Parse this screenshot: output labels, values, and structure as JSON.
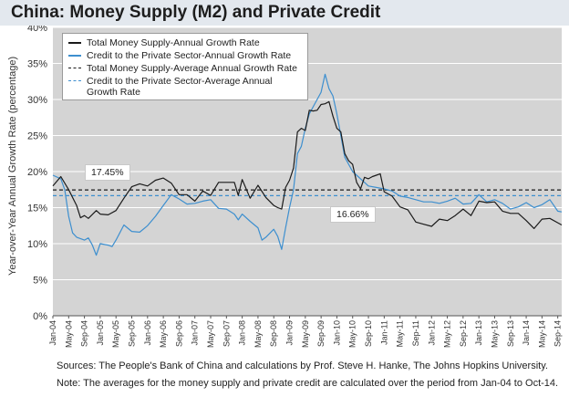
{
  "title": "China: Money Supply (M2) and Private Credit",
  "notes": {
    "source": "Sources: The People's Bank of China and calculations by Prof. Steve H. Hanke,  The Johns Hopkins University.",
    "note": "Note: The averages for the money supply and private credit are calculated over the period from Jan-04 to Oct-14."
  },
  "colors": {
    "m2": "#1a1a1a",
    "credit": "#3d8fcf",
    "plot_bg": "#d4d4d4",
    "title_bg": "#e3e8ee",
    "grid": "#ffffff"
  },
  "chart_data": {
    "type": "line",
    "title": "China: Money Supply (M2) and Private Credit",
    "ylabel": "Year-over-Year Annual Growth Rate (percentage)",
    "xlabel": "",
    "ylim": [
      0,
      40
    ],
    "yticks": [
      "0%",
      "5%",
      "10%",
      "15%",
      "20%",
      "25%",
      "30%",
      "35%",
      "40%"
    ],
    "grid": "horizontal",
    "legend_position": "top-left",
    "x_range": [
      "Jan-04",
      "Oct-14"
    ],
    "x_tick_labels": [
      "Jan-04",
      "May-04",
      "Sep-04",
      "Jan-05",
      "May-05",
      "Sep-05",
      "Jan-06",
      "May-06",
      "Sep-06",
      "Jan-07",
      "May-07",
      "Sep-07",
      "Jan-08",
      "May-08",
      "Sep-08",
      "Jan-09",
      "May-09",
      "Sep-09",
      "Jan-10",
      "May-10",
      "Sep-10",
      "Jan-11",
      "May-11",
      "Sep-11",
      "Jan-12",
      "May-12",
      "Sep-12",
      "Jan-13",
      "May-13",
      "Sep-13",
      "Jan-14",
      "May-14",
      "Sep-14"
    ],
    "series": [
      {
        "name": "Total Money Supply-Annual Growth Rate",
        "style": "solid",
        "points": [
          [
            "Jan-04",
            18.0
          ],
          [
            "Mar-04",
            19.3
          ],
          [
            "May-04",
            17.5
          ],
          [
            "Jul-04",
            15.3
          ],
          [
            "Aug-04",
            13.6
          ],
          [
            "Sep-04",
            13.9
          ],
          [
            "Oct-04",
            13.5
          ],
          [
            "Dec-04",
            14.6
          ],
          [
            "Jan-05",
            14.1
          ],
          [
            "Mar-05",
            14.0
          ],
          [
            "May-05",
            14.6
          ],
          [
            "Jul-05",
            16.3
          ],
          [
            "Sep-05",
            17.9
          ],
          [
            "Nov-05",
            18.3
          ],
          [
            "Jan-06",
            18.0
          ],
          [
            "Mar-06",
            18.8
          ],
          [
            "May-06",
            19.1
          ],
          [
            "Jul-06",
            18.4
          ],
          [
            "Sep-06",
            16.8
          ],
          [
            "Nov-06",
            16.8
          ],
          [
            "Jan-07",
            15.9
          ],
          [
            "Mar-07",
            17.3
          ],
          [
            "May-07",
            16.7
          ],
          [
            "Jul-07",
            18.5
          ],
          [
            "Sep-07",
            18.5
          ],
          [
            "Nov-07",
            18.5
          ],
          [
            "Dec-07",
            16.7
          ],
          [
            "Jan-08",
            18.9
          ],
          [
            "Mar-08",
            16.3
          ],
          [
            "May-08",
            18.1
          ],
          [
            "Jul-08",
            16.4
          ],
          [
            "Sep-08",
            15.3
          ],
          [
            "Oct-08",
            15.0
          ],
          [
            "Nov-08",
            14.8
          ],
          [
            "Dec-08",
            17.8
          ],
          [
            "Jan-09",
            18.8
          ],
          [
            "Feb-09",
            20.5
          ],
          [
            "Mar-09",
            25.5
          ],
          [
            "Apr-09",
            26.0
          ],
          [
            "May-09",
            25.7
          ],
          [
            "Jun-09",
            28.5
          ],
          [
            "Jul-09",
            28.4
          ],
          [
            "Aug-09",
            28.5
          ],
          [
            "Sep-09",
            29.3
          ],
          [
            "Oct-09",
            29.4
          ],
          [
            "Nov-09",
            29.7
          ],
          [
            "Dec-09",
            27.7
          ],
          [
            "Jan-10",
            26.0
          ],
          [
            "Feb-10",
            25.5
          ],
          [
            "Mar-10",
            22.5
          ],
          [
            "Apr-10",
            21.5
          ],
          [
            "May-10",
            21.0
          ],
          [
            "Jun-10",
            18.5
          ],
          [
            "Jul-10",
            17.6
          ],
          [
            "Aug-10",
            19.2
          ],
          [
            "Sep-10",
            19.0
          ],
          [
            "Oct-10",
            19.3
          ],
          [
            "Nov-10",
            19.5
          ],
          [
            "Dec-10",
            19.7
          ],
          [
            "Jan-11",
            17.2
          ],
          [
            "Mar-11",
            16.6
          ],
          [
            "May-11",
            15.1
          ],
          [
            "Jul-11",
            14.7
          ],
          [
            "Sep-11",
            13.0
          ],
          [
            "Nov-11",
            12.7
          ],
          [
            "Jan-12",
            12.4
          ],
          [
            "Mar-12",
            13.4
          ],
          [
            "May-12",
            13.2
          ],
          [
            "Jul-12",
            13.9
          ],
          [
            "Sep-12",
            14.8
          ],
          [
            "Nov-12",
            13.9
          ],
          [
            "Jan-13",
            15.9
          ],
          [
            "Mar-13",
            15.7
          ],
          [
            "May-13",
            15.8
          ],
          [
            "Jul-13",
            14.5
          ],
          [
            "Sep-13",
            14.2
          ],
          [
            "Nov-13",
            14.2
          ],
          [
            "Jan-14",
            13.2
          ],
          [
            "Mar-14",
            12.1
          ],
          [
            "May-14",
            13.4
          ],
          [
            "Jul-14",
            13.5
          ],
          [
            "Sep-14",
            12.9
          ],
          [
            "Oct-14",
            12.6
          ]
        ]
      },
      {
        "name": "Credit to the Private Sector-Annual Growth Rate",
        "style": "solid",
        "points": [
          [
            "Jan-04",
            19.5
          ],
          [
            "Mar-04",
            19.0
          ],
          [
            "Apr-04",
            17.5
          ],
          [
            "May-04",
            13.8
          ],
          [
            "Jun-04",
            11.5
          ],
          [
            "Jul-04",
            10.9
          ],
          [
            "Sep-04",
            10.5
          ],
          [
            "Oct-04",
            10.8
          ],
          [
            "Nov-04",
            9.8
          ],
          [
            "Dec-04",
            8.4
          ],
          [
            "Jan-05",
            10.0
          ],
          [
            "Mar-05",
            9.8
          ],
          [
            "Apr-05",
            9.6
          ],
          [
            "May-05",
            10.5
          ],
          [
            "Jul-05",
            12.6
          ],
          [
            "Sep-05",
            11.7
          ],
          [
            "Nov-05",
            11.6
          ],
          [
            "Jan-06",
            12.5
          ],
          [
            "Mar-06",
            13.8
          ],
          [
            "May-06",
            15.3
          ],
          [
            "Jul-06",
            16.8
          ],
          [
            "Sep-06",
            16.2
          ],
          [
            "Nov-06",
            15.5
          ],
          [
            "Jan-07",
            15.6
          ],
          [
            "Mar-07",
            15.9
          ],
          [
            "May-07",
            16.1
          ],
          [
            "Jul-07",
            14.9
          ],
          [
            "Sep-07",
            14.8
          ],
          [
            "Nov-07",
            14.1
          ],
          [
            "Dec-07",
            13.3
          ],
          [
            "Jan-08",
            14.1
          ],
          [
            "Mar-08",
            13.1
          ],
          [
            "May-08",
            12.2
          ],
          [
            "Jun-08",
            10.5
          ],
          [
            "Jul-08",
            10.9
          ],
          [
            "Sep-08",
            12.0
          ],
          [
            "Oct-08",
            11.0
          ],
          [
            "Nov-08",
            9.2
          ],
          [
            "Dec-08",
            12.2
          ],
          [
            "Jan-09",
            15.0
          ],
          [
            "Feb-09",
            17.5
          ],
          [
            "Mar-09",
            22.5
          ],
          [
            "Apr-09",
            23.5
          ],
          [
            "May-09",
            26.0
          ],
          [
            "Jun-09",
            28.0
          ],
          [
            "Jul-09",
            29.0
          ],
          [
            "Aug-09",
            30.0
          ],
          [
            "Sep-09",
            31.0
          ],
          [
            "Oct-09",
            33.5
          ],
          [
            "Nov-09",
            31.5
          ],
          [
            "Dec-09",
            30.5
          ],
          [
            "Jan-10",
            28.0
          ],
          [
            "Feb-10",
            25.0
          ],
          [
            "Mar-10",
            22.0
          ],
          [
            "Apr-10",
            21.0
          ],
          [
            "May-10",
            20.0
          ],
          [
            "Jun-10",
            19.5
          ],
          [
            "Jul-10",
            19.0
          ],
          [
            "Aug-10",
            18.5
          ],
          [
            "Sep-10",
            18.0
          ],
          [
            "Nov-10",
            17.8
          ],
          [
            "Jan-11",
            17.6
          ],
          [
            "Mar-11",
            17.3
          ],
          [
            "May-11",
            16.6
          ],
          [
            "Jul-11",
            16.4
          ],
          [
            "Sep-11",
            16.1
          ],
          [
            "Nov-11",
            15.8
          ],
          [
            "Jan-12",
            15.8
          ],
          [
            "Mar-12",
            15.6
          ],
          [
            "May-12",
            15.9
          ],
          [
            "Jul-12",
            16.3
          ],
          [
            "Sep-12",
            15.5
          ],
          [
            "Nov-12",
            15.6
          ],
          [
            "Jan-13",
            16.8
          ],
          [
            "Mar-13",
            15.8
          ],
          [
            "May-13",
            16.1
          ],
          [
            "Jul-13",
            15.6
          ],
          [
            "Sep-13",
            14.8
          ],
          [
            "Nov-13",
            15.1
          ],
          [
            "Jan-14",
            15.7
          ],
          [
            "Mar-14",
            15.0
          ],
          [
            "May-14",
            15.4
          ],
          [
            "Jul-14",
            16.1
          ],
          [
            "Sep-14",
            14.5
          ],
          [
            "Oct-14",
            14.4
          ]
        ]
      },
      {
        "name": "Total Money Supply-Average Annual Growth Rate",
        "style": "dashed",
        "value": 17.45,
        "label": "17.45%"
      },
      {
        "name": "Credit to the Private Sector-Average Annual Growth Rate",
        "style": "dashed",
        "value": 16.66,
        "label": "16.66%"
      }
    ]
  }
}
